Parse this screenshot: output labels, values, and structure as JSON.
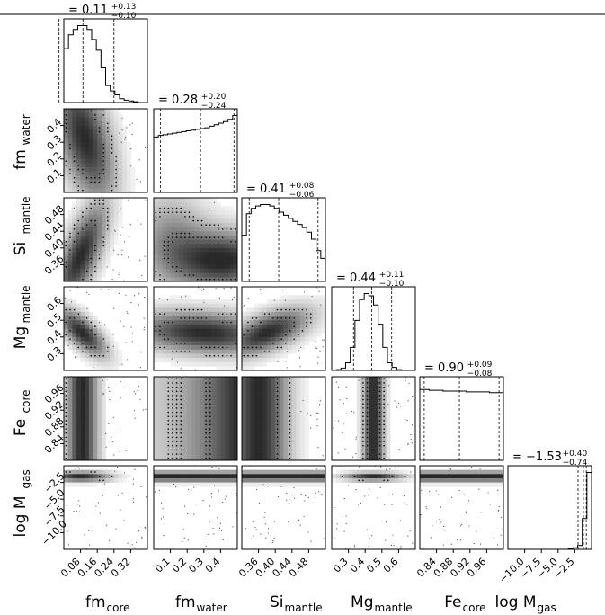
{
  "chart_data": {
    "type": "corner",
    "parameters": [
      {
        "key": "fm_core",
        "label_main": "fm",
        "label_sub": "core",
        "title_value": "0.11",
        "title_plus": "+0.13",
        "title_minus": "−0.10",
        "xticks": [
          "0.08",
          "0.16",
          "0.24",
          "0.32"
        ],
        "range": [
          0.03,
          0.38
        ],
        "quantiles": [
          0.01,
          0.11,
          0.24
        ],
        "hist": [
          0.7,
          0.88,
          0.95,
          1.0,
          1.0,
          0.95,
          0.82,
          0.68,
          0.45,
          0.22,
          0.15,
          0.1,
          0.05,
          0.03,
          0.02,
          0.01,
          0.0,
          0.0
        ]
      },
      {
        "key": "fm_water",
        "label_main": "fm",
        "label_sub": "water",
        "title_value": "0.28",
        "title_plus": "+0.20",
        "title_minus": "−0.24",
        "yticks": [
          "0.1",
          "0.2",
          "0.3",
          "0.4"
        ],
        "xticks": [
          "0.1",
          "0.2",
          "0.3",
          "0.4"
        ],
        "range": [
          0.0,
          0.5
        ],
        "quantiles": [
          0.04,
          0.28,
          0.48
        ],
        "hist": [
          0.72,
          0.74,
          0.75,
          0.76,
          0.77,
          0.78,
          0.79,
          0.8,
          0.81,
          0.82,
          0.83,
          0.84,
          0.86,
          0.88,
          0.9,
          0.92,
          0.95,
          1.0
        ]
      },
      {
        "key": "si_mantle",
        "label_main": "Si",
        "label_sub": "mantle",
        "title_value": "0.41",
        "title_plus": "+0.08",
        "title_minus": "−0.06",
        "yticks": [
          "0.36",
          "0.40",
          "0.44",
          "0.48"
        ],
        "xticks": [
          "0.36",
          "0.40",
          "0.44",
          "0.48"
        ],
        "range": [
          0.335,
          0.505
        ],
        "quantiles": [
          0.35,
          0.41,
          0.49
        ],
        "hist": [
          0.6,
          0.88,
          0.95,
          0.98,
          1.0,
          1.0,
          0.98,
          0.95,
          0.9,
          0.86,
          0.82,
          0.78,
          0.74,
          0.7,
          0.64,
          0.55,
          0.4,
          0.3
        ]
      },
      {
        "key": "mg_mantle",
        "label_main": "Mg",
        "label_sub": "mantle",
        "title_value": "0.44",
        "title_plus": "+0.11",
        "title_minus": "−0.10",
        "yticks": [
          "0.3",
          "0.4",
          "0.5",
          "0.6"
        ],
        "xticks": [
          "0.3",
          "0.4",
          "0.5",
          "0.6"
        ],
        "range": [
          0.22,
          0.68
        ],
        "quantiles": [
          0.34,
          0.44,
          0.55
        ],
        "hist": [
          0.0,
          0.01,
          0.03,
          0.1,
          0.3,
          0.65,
          0.92,
          1.0,
          0.97,
          0.85,
          0.6,
          0.3,
          0.1,
          0.04,
          0.01,
          0.0,
          0.0,
          0.0
        ]
      },
      {
        "key": "fe_core",
        "label_main": "Fe",
        "label_sub": "core",
        "title_value": "0.90",
        "title_plus": "+0.09",
        "title_minus": "−0.08",
        "yticks": [
          "0.84",
          "0.88",
          "0.92",
          "0.96"
        ],
        "xticks": [
          "0.84",
          "0.88",
          "0.92",
          "0.96"
        ],
        "range": [
          0.81,
          1.0
        ],
        "quantiles": [
          0.82,
          0.9,
          0.99
        ],
        "hist": [
          0.92,
          0.92,
          0.91,
          0.91,
          0.91,
          0.9,
          0.9,
          0.9,
          0.9,
          0.9,
          0.89,
          0.89,
          0.89,
          0.89,
          0.89,
          0.88,
          0.88,
          0.88
        ]
      },
      {
        "key": "log_mgas",
        "label_main": "log M",
        "label_sub": "gas",
        "title_value": "−1.53",
        "title_plus": "+0.40",
        "title_minus": "−0.74",
        "yticks": [
          "−10.0",
          "−7.5",
          "−5.0",
          "−2.5"
        ],
        "xticks": [
          "−10.0",
          "−7.5",
          "−5.0",
          "−2.5"
        ],
        "range": [
          -12.0,
          -0.4
        ],
        "quantiles": [
          -2.27,
          -1.53,
          -1.13
        ],
        "hist": [
          0.0,
          0.0,
          0.0,
          0.0,
          0.0,
          0.0,
          0.0,
          0.0,
          0.0,
          0.0,
          0.0,
          0.0,
          0.0,
          0.01,
          0.02,
          0.05,
          0.4,
          1.0
        ]
      }
    ],
    "title_prefix": "=",
    "colors": {
      "dense": "#1a1a1a",
      "mid": "#777777",
      "light": "#cfcfcf",
      "line": "#000000"
    }
  }
}
